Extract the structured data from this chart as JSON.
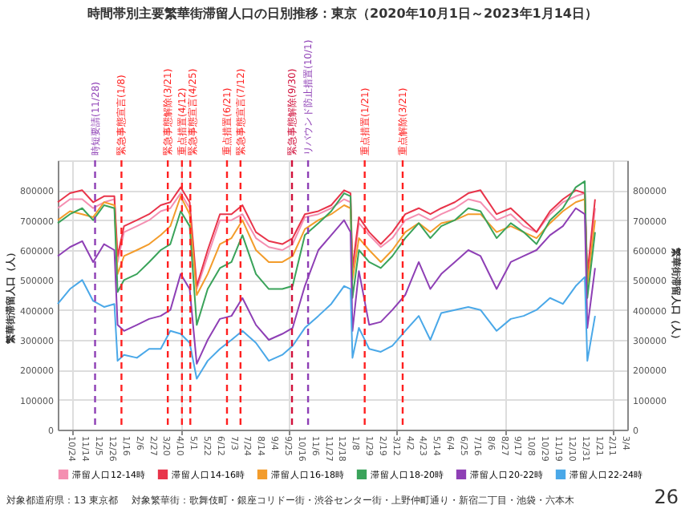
{
  "chart_data": {
    "type": "line",
    "title": "時間帯別主要繁華街滞留人口の日別推移：東京（2020年10月1日～2023年1月14日）",
    "ylabel": "繁華街滞留人口（人）",
    "y2label": "繁華街滞留人口（人）",
    "x": [
      "2020-10-01",
      "2020-10-20",
      "2020-11-08",
      "2020-11-25",
      "2020-12-12",
      "2020-12-28",
      "2021-01-02",
      "2021-01-12",
      "2021-02-01",
      "2021-02-20",
      "2021-03-10",
      "2021-03-25",
      "2021-04-10",
      "2021-04-24",
      "2021-05-05",
      "2021-05-22",
      "2021-06-10",
      "2021-06-28",
      "2021-07-15",
      "2021-08-05",
      "2021-08-25",
      "2021-09-15",
      "2021-10-01",
      "2021-10-20",
      "2021-11-10",
      "2021-11-30",
      "2021-12-20",
      "2021-12-30",
      "2022-01-02",
      "2022-01-12",
      "2022-01-28",
      "2022-02-15",
      "2022-03-05",
      "2022-03-25",
      "2022-04-15",
      "2022-05-03",
      "2022-05-20",
      "2022-06-10",
      "2022-07-01",
      "2022-07-20",
      "2022-08-14",
      "2022-09-05",
      "2022-09-25",
      "2022-10-15",
      "2022-11-05",
      "2022-11-25",
      "2022-12-15",
      "2022-12-29",
      "2023-01-02",
      "2023-01-14"
    ],
    "series": [
      {
        "name": "滞留人口12-14時",
        "color": "#f48fb1",
        "values": [
          740000,
          770000,
          770000,
          740000,
          760000,
          770000,
          560000,
          660000,
          680000,
          700000,
          730000,
          740000,
          790000,
          740000,
          470000,
          580000,
          700000,
          700000,
          720000,
          640000,
          610000,
          600000,
          620000,
          710000,
          720000,
          740000,
          770000,
          760000,
          520000,
          690000,
          650000,
          610000,
          640000,
          700000,
          720000,
          700000,
          720000,
          740000,
          770000,
          760000,
          700000,
          720000,
          680000,
          660000,
          720000,
          760000,
          780000,
          790000,
          500000,
          740000
        ]
      },
      {
        "name": "滞留人口14-16時",
        "color": "#e8344a",
        "values": [
          760000,
          790000,
          800000,
          760000,
          780000,
          780000,
          580000,
          680000,
          700000,
          720000,
          750000,
          760000,
          810000,
          760000,
          480000,
          600000,
          720000,
          720000,
          750000,
          660000,
          630000,
          620000,
          640000,
          720000,
          730000,
          750000,
          800000,
          790000,
          540000,
          710000,
          660000,
          620000,
          660000,
          720000,
          740000,
          720000,
          740000,
          760000,
          790000,
          800000,
          720000,
          740000,
          700000,
          660000,
          730000,
          770000,
          800000,
          790000,
          520000,
          770000
        ]
      },
      {
        "name": "滞留人口16-18時",
        "color": "#f39c2b",
        "values": [
          700000,
          730000,
          720000,
          710000,
          760000,
          750000,
          520000,
          580000,
          600000,
          620000,
          650000,
          680000,
          780000,
          720000,
          450000,
          520000,
          620000,
          640000,
          700000,
          600000,
          560000,
          560000,
          580000,
          670000,
          700000,
          720000,
          750000,
          740000,
          500000,
          640000,
          600000,
          560000,
          600000,
          660000,
          690000,
          660000,
          690000,
          700000,
          720000,
          720000,
          660000,
          680000,
          660000,
          640000,
          690000,
          730000,
          760000,
          770000,
          480000,
          700000
        ]
      },
      {
        "name": "滞留人口18-20時",
        "color": "#3aa35a",
        "values": [
          690000,
          720000,
          740000,
          700000,
          750000,
          740000,
          460000,
          500000,
          520000,
          560000,
          600000,
          620000,
          730000,
          680000,
          350000,
          470000,
          540000,
          560000,
          650000,
          520000,
          470000,
          470000,
          480000,
          650000,
          690000,
          730000,
          790000,
          780000,
          440000,
          600000,
          560000,
          540000,
          580000,
          640000,
          690000,
          640000,
          680000,
          700000,
          740000,
          730000,
          640000,
          690000,
          660000,
          620000,
          700000,
          740000,
          810000,
          830000,
          440000,
          660000
        ]
      },
      {
        "name": "滞留人口20-22時",
        "color": "#8e3fb5",
        "values": [
          580000,
          610000,
          630000,
          560000,
          620000,
          600000,
          350000,
          330000,
          350000,
          370000,
          380000,
          400000,
          520000,
          470000,
          220000,
          300000,
          370000,
          380000,
          440000,
          350000,
          300000,
          320000,
          340000,
          480000,
          600000,
          650000,
          700000,
          660000,
          330000,
          530000,
          350000,
          360000,
          400000,
          450000,
          560000,
          470000,
          520000,
          560000,
          600000,
          580000,
          470000,
          560000,
          580000,
          600000,
          650000,
          680000,
          740000,
          720000,
          340000,
          540000
        ]
      },
      {
        "name": "滞留人口22-24時",
        "color": "#4aa8e8",
        "values": [
          420000,
          470000,
          500000,
          430000,
          410000,
          420000,
          230000,
          250000,
          240000,
          270000,
          270000,
          330000,
          320000,
          290000,
          170000,
          230000,
          270000,
          300000,
          330000,
          290000,
          230000,
          250000,
          280000,
          340000,
          380000,
          420000,
          480000,
          470000,
          240000,
          340000,
          270000,
          260000,
          280000,
          330000,
          380000,
          300000,
          390000,
          400000,
          410000,
          400000,
          330000,
          370000,
          380000,
          400000,
          440000,
          420000,
          480000,
          510000,
          230000,
          380000
        ]
      }
    ],
    "xlim": [
      "2020-10-01",
      "2023-03-05"
    ],
    "xticks": [
      {
        "value": "2020-10-24",
        "label": "10/24"
      },
      {
        "value": "2020-11-14",
        "label": "11/14"
      },
      {
        "value": "2020-12-05",
        "label": "12/5"
      },
      {
        "value": "2020-12-26",
        "label": "12/26"
      },
      {
        "value": "2021-01-16",
        "label": "1/16"
      },
      {
        "value": "2021-02-06",
        "label": "2/6"
      },
      {
        "value": "2021-02-27",
        "label": "2/27"
      },
      {
        "value": "2021-03-20",
        "label": "3/20"
      },
      {
        "value": "2021-04-10",
        "label": "4/10"
      },
      {
        "value": "2021-05-01",
        "label": "5/1"
      },
      {
        "value": "2021-05-22",
        "label": "5/22"
      },
      {
        "value": "2021-06-12",
        "label": "6/12"
      },
      {
        "value": "2021-07-03",
        "label": "7/3"
      },
      {
        "value": "2021-07-24",
        "label": "7/24"
      },
      {
        "value": "2021-08-14",
        "label": "8/14"
      },
      {
        "value": "2021-09-04",
        "label": "9/4"
      },
      {
        "value": "2021-09-25",
        "label": "9/25"
      },
      {
        "value": "2021-10-16",
        "label": "10/16"
      },
      {
        "value": "2021-11-06",
        "label": "11/6"
      },
      {
        "value": "2021-11-27",
        "label": "11/27"
      },
      {
        "value": "2021-12-18",
        "label": "12/18"
      },
      {
        "value": "2022-01-08",
        "label": "1/8"
      },
      {
        "value": "2022-01-29",
        "label": "1/29"
      },
      {
        "value": "2022-02-19",
        "label": "2/19"
      },
      {
        "value": "2022-03-12",
        "label": "3/12"
      },
      {
        "value": "2022-04-02",
        "label": "4/2"
      },
      {
        "value": "2022-04-23",
        "label": "4/23"
      },
      {
        "value": "2022-05-14",
        "label": "5/14"
      },
      {
        "value": "2022-06-04",
        "label": "6/4"
      },
      {
        "value": "2022-06-25",
        "label": "6/25"
      },
      {
        "value": "2022-07-16",
        "label": "7/16"
      },
      {
        "value": "2022-08-06",
        "label": "8/6"
      },
      {
        "value": "2022-08-27",
        "label": "8/27"
      },
      {
        "value": "2022-09-17",
        "label": "9/17"
      },
      {
        "value": "2022-10-08",
        "label": "10/8"
      },
      {
        "value": "2022-10-29",
        "label": "10/29"
      },
      {
        "value": "2022-11-19",
        "label": "11/19"
      },
      {
        "value": "2022-12-10",
        "label": "12/10"
      },
      {
        "value": "2022-12-31",
        "label": "12/31"
      },
      {
        "value": "2023-01-21",
        "label": "1/21"
      },
      {
        "value": "2023-02-11",
        "label": "2/11"
      },
      {
        "value": "2023-03-04",
        "label": "3/4"
      }
    ],
    "ylim": [
      0,
      900000
    ],
    "yticks": [
      0,
      100000,
      200000,
      300000,
      400000,
      500000,
      600000,
      700000,
      800000
    ],
    "y2lim": [
      0,
      900000
    ],
    "y2ticks": [
      0,
      100000,
      200000,
      300000,
      400000,
      500000,
      600000,
      700000,
      800000
    ],
    "ref_lines": [
      {
        "axis": "x",
        "value": "2020-11-28",
        "label": "時短要請(11/28)",
        "color": "#8e3fb5",
        "line_style": "dashed"
      },
      {
        "axis": "x",
        "value": "2021-01-08",
        "label": "緊急事態宣言(1/8)",
        "color": "#ff2020",
        "line_style": "dashed"
      },
      {
        "axis": "x",
        "value": "2021-03-21",
        "label": "緊急事態解除(3/21)",
        "color": "#ff2020",
        "line_style": "dashed"
      },
      {
        "axis": "x",
        "value": "2021-04-12",
        "label": "重点措置(4/12)",
        "color": "#ff2020",
        "line_style": "dashed"
      },
      {
        "axis": "x",
        "value": "2021-04-25",
        "label": "緊急事態宣言(4/25)",
        "color": "#ff2020",
        "line_style": "dashed"
      },
      {
        "axis": "x",
        "value": "2021-06-21",
        "label": "重点措置(6/21)",
        "color": "#ff2020",
        "line_style": "dashed"
      },
      {
        "axis": "x",
        "value": "2021-07-12",
        "label": "緊急事態宣言(7/12)",
        "color": "#ff2020",
        "line_style": "dashed"
      },
      {
        "axis": "x",
        "value": "2021-09-30",
        "label": "緊急事態解除(9/30)",
        "color": "#d0103a",
        "line_style": "dashed"
      },
      {
        "axis": "x",
        "value": "2021-10-25",
        "label": "リバウンド防止措置(10/1)",
        "color": "#8e3fb5",
        "line_style": "dashed"
      },
      {
        "axis": "x",
        "value": "2022-01-21",
        "label": "重点措置(1/21)",
        "color": "#ff2020",
        "line_style": "dashed"
      },
      {
        "axis": "x",
        "value": "2022-03-21",
        "label": "重点解除(3/21)",
        "color": "#ff2020",
        "line_style": "dashed"
      }
    ],
    "grid": true,
    "legend": "bottom",
    "line_style": "solid",
    "marker": "none",
    "annotations": [
      "対象都道府県：13 東京都",
      "対象繁華街：歌舞伎町・銀座コリドー街・渋谷センター街・上野仲町通り・新宿二丁目・池袋・六本木",
      "26"
    ]
  }
}
